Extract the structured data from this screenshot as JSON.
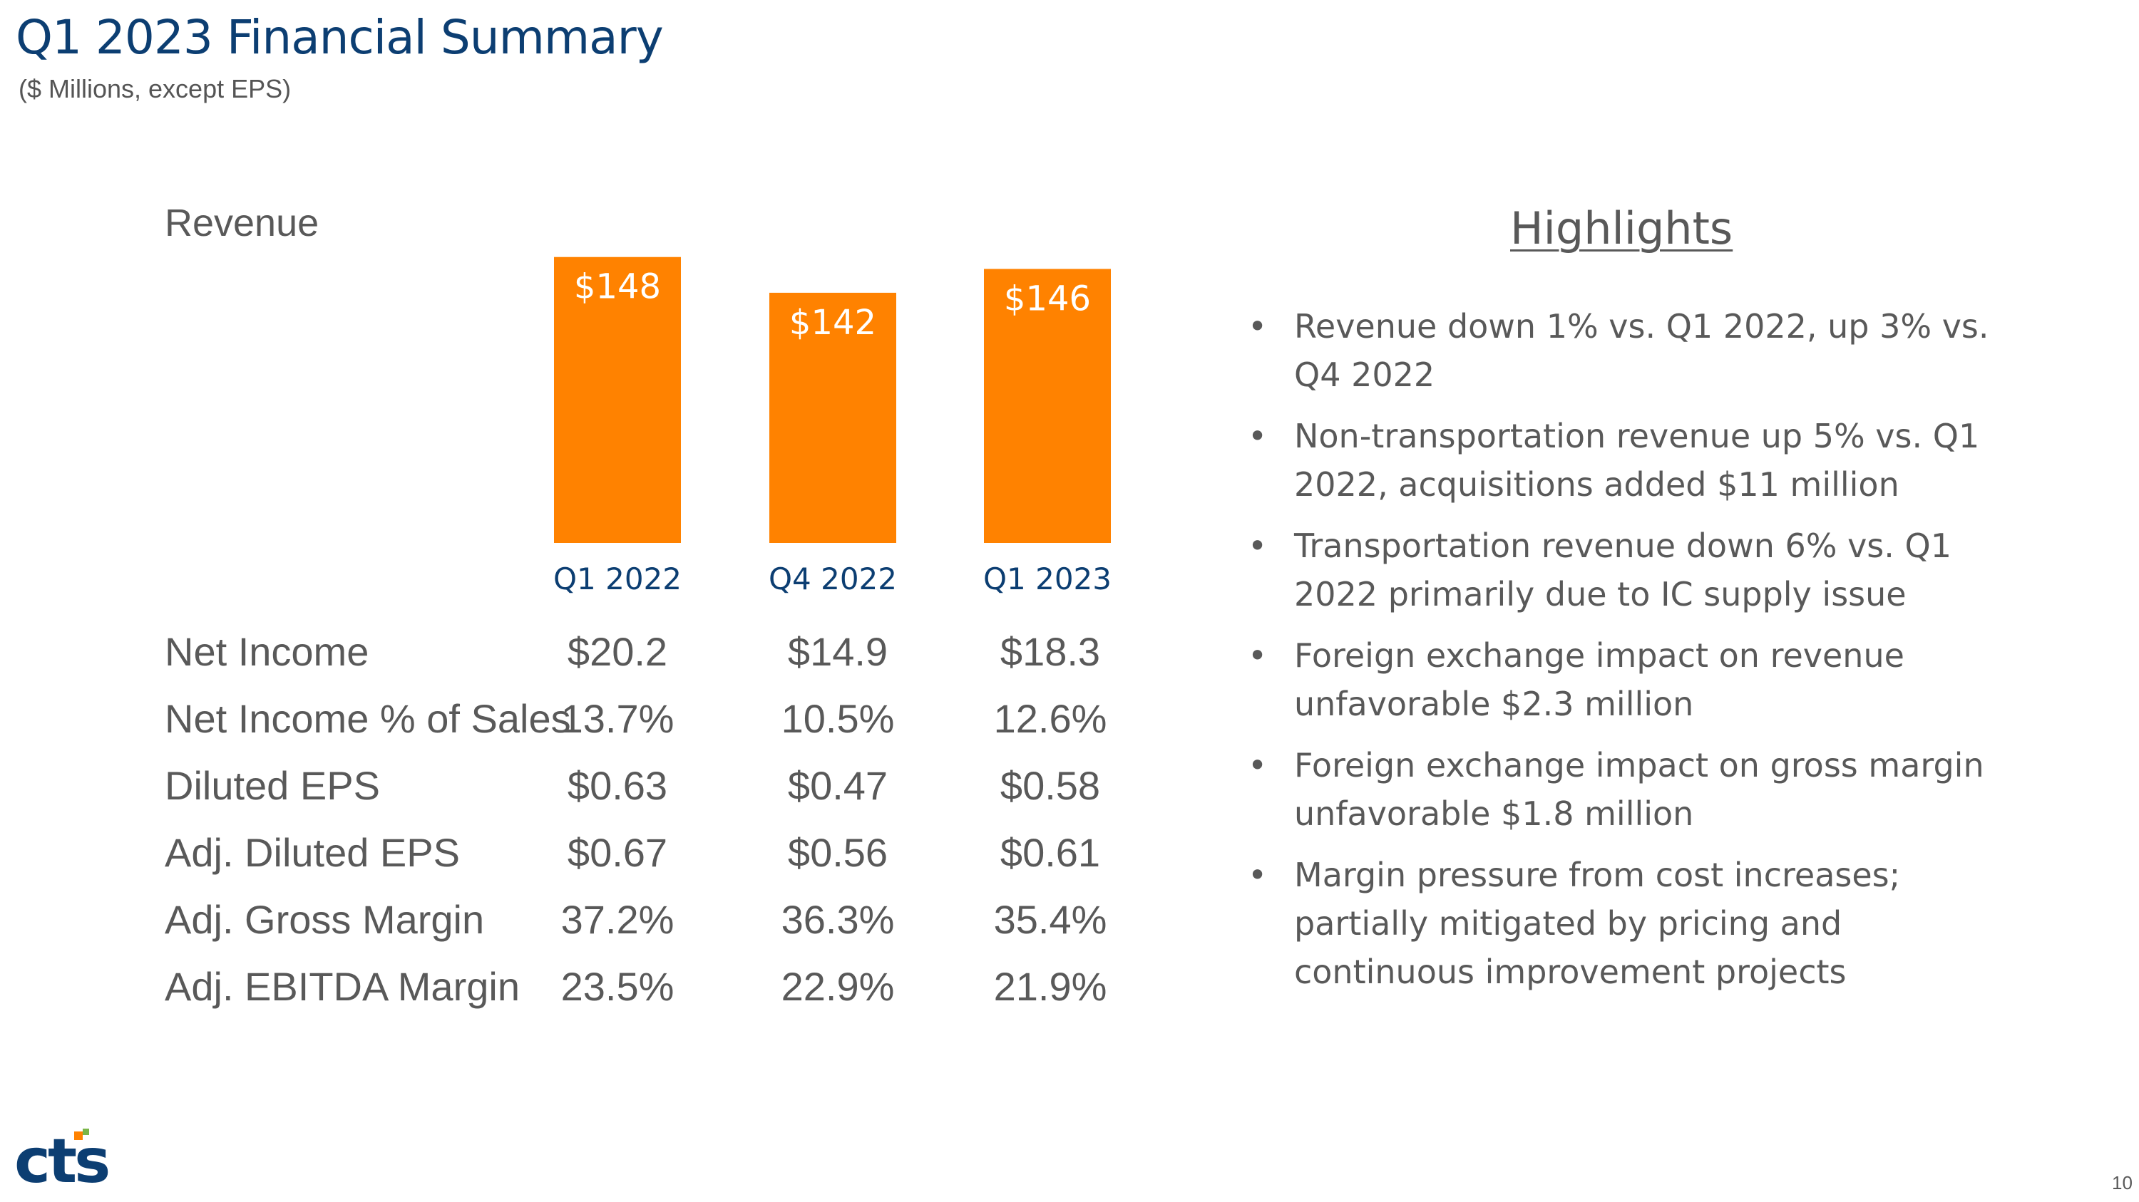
{
  "header": {
    "title": "Q1 2023 Financial Summary",
    "subtitle": "($ Millions, except EPS)"
  },
  "revenue_label": "Revenue",
  "chart_data": {
    "type": "bar",
    "title": "Revenue",
    "categories": [
      "Q1 2022",
      "Q4 2022",
      "Q1 2023"
    ],
    "values": [
      148,
      142,
      146
    ],
    "data_labels": [
      "$148",
      "$142",
      "$146"
    ],
    "ylim": [
      100,
      150
    ],
    "xlabel": "",
    "ylabel": "",
    "bar_color": "#ff8200",
    "label_color": "#ffffff",
    "category_color": "#0c3e72"
  },
  "metrics": [
    {
      "label": "Net Income",
      "values": [
        "$20.2",
        "$14.9",
        "$18.3"
      ]
    },
    {
      "label": "Net Income % of Sales",
      "values": [
        "13.7%",
        "10.5%",
        "12.6%"
      ]
    },
    {
      "label": "Diluted EPS",
      "values": [
        "$0.63",
        "$0.47",
        "$0.58"
      ]
    },
    {
      "label": "Adj. Diluted EPS",
      "values": [
        "$0.67",
        "$0.56",
        "$0.61"
      ]
    },
    {
      "label": "Adj. Gross Margin",
      "values": [
        "37.2%",
        "36.3%",
        "35.4%"
      ]
    },
    {
      "label": "Adj. EBITDA Margin",
      "values": [
        "23.5%",
        "22.9%",
        "21.9%"
      ]
    }
  ],
  "highlights": {
    "title": "Highlights",
    "bullet_glyph": "•",
    "items": [
      "Revenue down 1% vs. Q1 2022, up 3% vs. Q4 2022",
      "Non-transportation revenue up 5% vs. Q1 2022, acquisitions added $11 million",
      "Transportation revenue down 6% vs. Q1 2022 primarily due to IC supply issue",
      "Foreign exchange impact on revenue unfavorable $2.3 million",
      "Foreign exchange impact on gross margin unfavorable $1.8 million",
      "Margin pressure from cost increases; partially mitigated by pricing and continuous improvement projects"
    ]
  },
  "footer": {
    "logo_text": "cts",
    "logo_colors": {
      "text": "#0c3e72",
      "orange": "#ff8200",
      "green": "#7ab648"
    },
    "page_number": "10"
  }
}
